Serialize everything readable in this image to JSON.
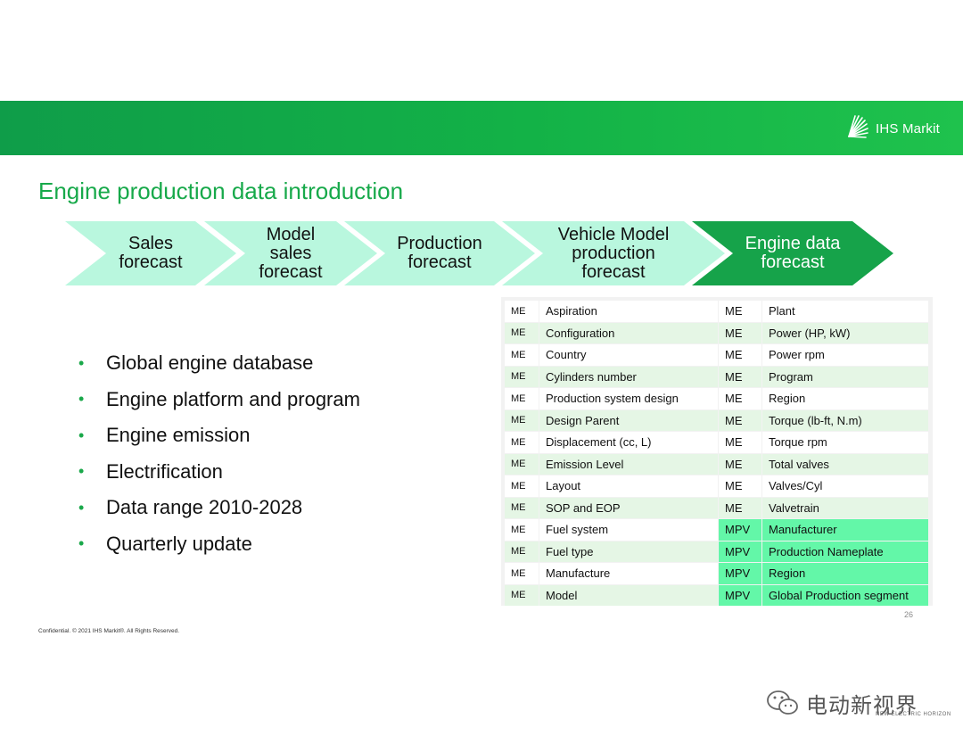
{
  "header": {
    "logo_text": "IHS Markit",
    "colors": {
      "banner": "#13b247",
      "accent": "#17a94a",
      "chevron_light": "#b9f7de",
      "chevron_dark": "#16a34a",
      "mpv_highlight": "#63f7a8"
    }
  },
  "title": "Engine production data introduction",
  "process_steps": [
    {
      "label": "Sales forecast"
    },
    {
      "label": "Model sales forecast"
    },
    {
      "label": "Production forecast"
    },
    {
      "label": "Vehicle Model production forecast"
    },
    {
      "label": "Engine data forecast"
    }
  ],
  "bullets": [
    "Global engine database",
    "Engine platform and program",
    "Engine emission",
    "Electrification",
    "Data range 2010-2028",
    "Quarterly update"
  ],
  "attribute_table": {
    "rows": [
      {
        "code1": "ME",
        "attr1": "Aspiration",
        "code2": "ME",
        "attr2": "Plant"
      },
      {
        "code1": "ME",
        "attr1": "Configuration",
        "code2": "ME",
        "attr2": "Power (HP, kW)"
      },
      {
        "code1": "ME",
        "attr1": "Country",
        "code2": "ME",
        "attr2": "Power rpm"
      },
      {
        "code1": "ME",
        "attr1": "Cylinders number",
        "code2": "ME",
        "attr2": "Program"
      },
      {
        "code1": "ME",
        "attr1": "Production system design",
        "code2": "ME",
        "attr2": "Region"
      },
      {
        "code1": "ME",
        "attr1": "Design Parent",
        "code2": "ME",
        "attr2": "Torque (lb-ft, N.m)"
      },
      {
        "code1": "ME",
        "attr1": "Displacement (cc, L)",
        "code2": "ME",
        "attr2": "Torque rpm"
      },
      {
        "code1": "ME",
        "attr1": "Emission Level",
        "code2": "ME",
        "attr2": "Total valves"
      },
      {
        "code1": "ME",
        "attr1": "Layout",
        "code2": "ME",
        "attr2": "Valves/Cyl"
      },
      {
        "code1": "ME",
        "attr1": "SOP and EOP",
        "code2": "ME",
        "attr2": "Valvetrain"
      },
      {
        "code1": "ME",
        "attr1": "Fuel system",
        "code2": "MPV",
        "attr2": "Manufacturer"
      },
      {
        "code1": "ME",
        "attr1": "Fuel type",
        "code2": "MPV",
        "attr2": "Production Nameplate"
      },
      {
        "code1": "ME",
        "attr1": "Manufacture",
        "code2": "MPV",
        "attr2": "Region"
      },
      {
        "code1": "ME",
        "attr1": "Model",
        "code2": "MPV",
        "attr2": "Global Production segment"
      }
    ]
  },
  "page_number": "26",
  "footer": "Confidential. © 2021 IHS Markit®. All Rights Reserved.",
  "watermark": {
    "text": "电动新视界",
    "sub": "NEW ELECTRIC HORIZON"
  }
}
